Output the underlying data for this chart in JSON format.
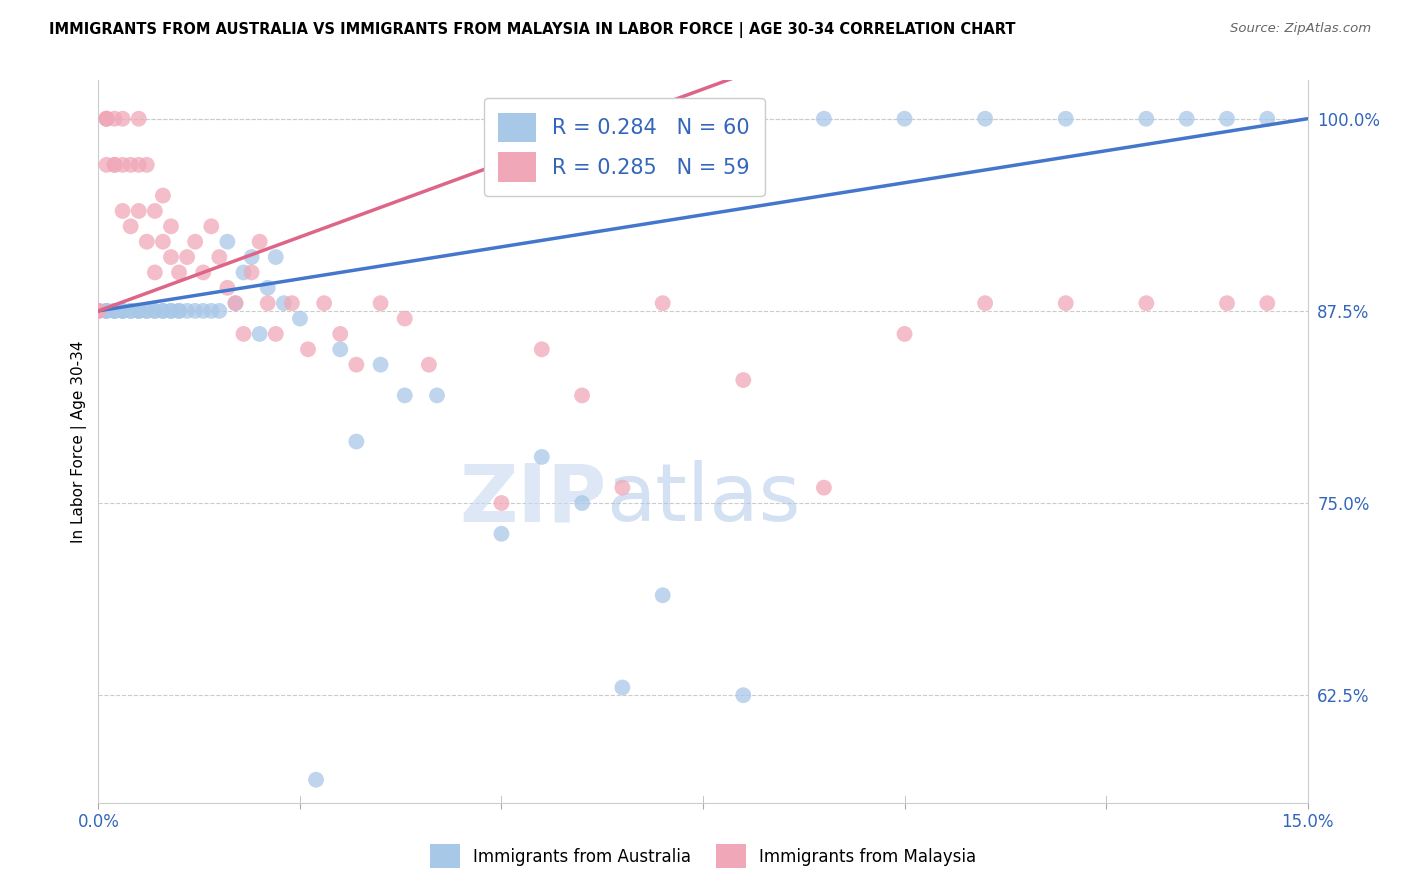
{
  "title": "IMMIGRANTS FROM AUSTRALIA VS IMMIGRANTS FROM MALAYSIA IN LABOR FORCE | AGE 30-34 CORRELATION CHART",
  "source": "Source: ZipAtlas.com",
  "ylabel": "In Labor Force | Age 30-34",
  "xlim": [
    0.0,
    0.15
  ],
  "ylim": [
    0.555,
    1.025
  ],
  "xticks": [
    0.0,
    0.025,
    0.05,
    0.075,
    0.1,
    0.125,
    0.15
  ],
  "xtick_labels": [
    "0.0%",
    "",
    "",
    "",
    "",
    "",
    "15.0%"
  ],
  "ytick_labels_right": [
    "62.5%",
    "75.0%",
    "87.5%",
    "100.0%"
  ],
  "yticks_right": [
    0.625,
    0.75,
    0.875,
    1.0
  ],
  "australia_color": "#a8c8e8",
  "malaysia_color": "#f0a8b8",
  "australia_line_color": "#4477cc",
  "malaysia_line_color": "#dd6688",
  "R_australia": 0.284,
  "N_australia": 60,
  "R_malaysia": 0.285,
  "N_malaysia": 59,
  "australia_x": [
    0.0,
    0.0,
    0.001,
    0.001,
    0.001,
    0.002,
    0.002,
    0.002,
    0.003,
    0.003,
    0.003,
    0.004,
    0.004,
    0.005,
    0.005,
    0.005,
    0.006,
    0.006,
    0.007,
    0.007,
    0.008,
    0.008,
    0.009,
    0.009,
    0.01,
    0.01,
    0.011,
    0.012,
    0.013,
    0.014,
    0.015,
    0.016,
    0.017,
    0.018,
    0.019,
    0.02,
    0.021,
    0.022,
    0.023,
    0.025,
    0.027,
    0.03,
    0.032,
    0.035,
    0.038,
    0.042,
    0.05,
    0.055,
    0.06,
    0.065,
    0.07,
    0.08,
    0.09,
    0.1,
    0.11,
    0.12,
    0.13,
    0.135,
    0.14,
    0.145
  ],
  "australia_y": [
    0.875,
    0.875,
    0.875,
    0.875,
    0.875,
    0.875,
    0.875,
    0.875,
    0.875,
    0.875,
    0.875,
    0.875,
    0.875,
    0.875,
    0.875,
    0.875,
    0.875,
    0.875,
    0.875,
    0.875,
    0.875,
    0.875,
    0.875,
    0.875,
    0.875,
    0.875,
    0.875,
    0.875,
    0.875,
    0.875,
    0.875,
    0.92,
    0.88,
    0.9,
    0.91,
    0.86,
    0.89,
    0.91,
    0.88,
    0.87,
    0.57,
    0.85,
    0.79,
    0.84,
    0.82,
    0.82,
    0.73,
    0.78,
    0.75,
    0.63,
    0.69,
    0.625,
    1.0,
    1.0,
    1.0,
    1.0,
    1.0,
    1.0,
    1.0,
    1.0
  ],
  "malaysia_x": [
    0.0,
    0.0,
    0.001,
    0.001,
    0.001,
    0.001,
    0.002,
    0.002,
    0.002,
    0.003,
    0.003,
    0.003,
    0.004,
    0.004,
    0.005,
    0.005,
    0.005,
    0.006,
    0.006,
    0.007,
    0.007,
    0.008,
    0.008,
    0.009,
    0.009,
    0.01,
    0.011,
    0.012,
    0.013,
    0.014,
    0.015,
    0.016,
    0.017,
    0.018,
    0.019,
    0.02,
    0.021,
    0.022,
    0.024,
    0.026,
    0.028,
    0.03,
    0.032,
    0.035,
    0.038,
    0.041,
    0.05,
    0.055,
    0.06,
    0.065,
    0.07,
    0.08,
    0.09,
    0.1,
    0.11,
    0.12,
    0.13,
    0.14,
    0.145
  ],
  "malaysia_y": [
    0.875,
    0.875,
    1.0,
    1.0,
    0.97,
    1.0,
    0.97,
    1.0,
    0.97,
    1.0,
    0.97,
    0.94,
    0.93,
    0.97,
    1.0,
    0.97,
    0.94,
    0.92,
    0.97,
    0.9,
    0.94,
    0.92,
    0.95,
    0.91,
    0.93,
    0.9,
    0.91,
    0.92,
    0.9,
    0.93,
    0.91,
    0.89,
    0.88,
    0.86,
    0.9,
    0.92,
    0.88,
    0.86,
    0.88,
    0.85,
    0.88,
    0.86,
    0.84,
    0.88,
    0.87,
    0.84,
    0.75,
    0.85,
    0.82,
    0.76,
    0.88,
    0.83,
    0.76,
    0.86,
    0.88,
    0.88,
    0.88,
    0.88,
    0.88
  ],
  "watermark_zip": "ZIP",
  "watermark_atlas": "atlas",
  "background_color": "#ffffff",
  "grid_color": "#cccccc"
}
